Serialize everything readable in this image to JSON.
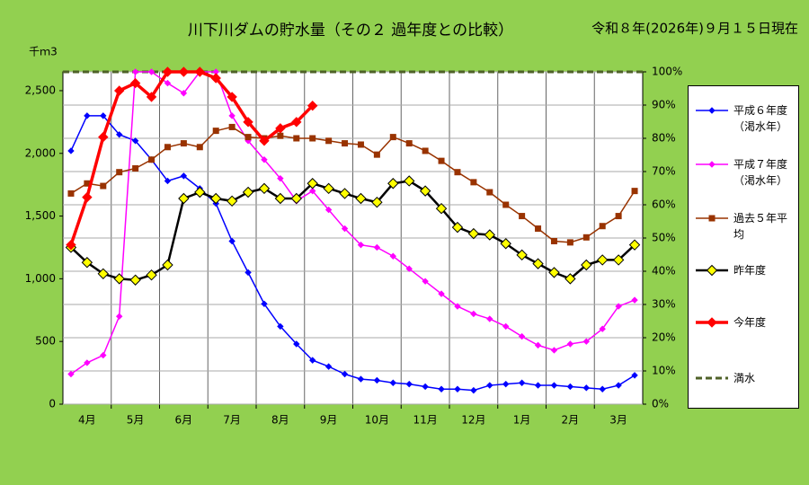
{
  "chart_data": {
    "type": "line",
    "title": "川下川ダムの貯水量（その２ 過年度との比較）",
    "subtitle": "令和８年(2026年)９月１５日現在",
    "ylabel": "千ｍ3",
    "categories": [
      null,
      "4月",
      null,
      null,
      "5月",
      null,
      null,
      "6月",
      null,
      null,
      "7月",
      null,
      null,
      "8月",
      null,
      null,
      "9月",
      null,
      null,
      "10月",
      null,
      null,
      "11月",
      null,
      null,
      "12月",
      null,
      null,
      "1月",
      null,
      null,
      "2月",
      null,
      null,
      "3月",
      null
    ],
    "ylim": [
      0,
      2650
    ],
    "yticks": [
      0,
      500,
      {
        "value": 1000,
        "label": "1,000"
      },
      {
        "value": 1500,
        "label": "1,500"
      },
      {
        "value": 2000,
        "label": "2,000"
      },
      {
        "value": 2500,
        "label": "2,500"
      }
    ],
    "y2lim": [
      0,
      100
    ],
    "y2ticks": [
      {
        "value": 0,
        "label": "0%"
      },
      {
        "value": 10,
        "label": "10%"
      },
      {
        "value": 20,
        "label": "20%"
      },
      {
        "value": 30,
        "label": "30%"
      },
      {
        "value": 40,
        "label": "40%"
      },
      {
        "value": 50,
        "label": "50%"
      },
      {
        "value": 60,
        "label": "60%"
      },
      {
        "value": 70,
        "label": "70%"
      },
      {
        "value": 80,
        "label": "80%"
      },
      {
        "value": 90,
        "label": "90%"
      },
      {
        "value": 100,
        "label": "100%"
      }
    ],
    "grid": true,
    "series": [
      {
        "name": "平成６年度（渇水年）",
        "color": "#0000ff",
        "marker": "diamond",
        "marker_color": "#0000ff",
        "width": 1.5,
        "values": [
          2020,
          2300,
          2300,
          2150,
          2100,
          1950,
          1780,
          1820,
          1720,
          1600,
          1300,
          1050,
          800,
          620,
          480,
          350,
          300,
          240,
          200,
          190,
          170,
          160,
          140,
          120,
          120,
          110,
          150,
          160,
          170,
          150,
          150,
          140,
          130,
          120,
          150,
          230
        ]
      },
      {
        "name": "平成７年度（渇水年）",
        "color": "#ff00ff",
        "marker": "diamond",
        "marker_color": "#ff00ff",
        "width": 1.5,
        "values": [
          240,
          330,
          390,
          700,
          2650,
          2650,
          2560,
          2480,
          2650,
          2650,
          2300,
          2100,
          1950,
          1800,
          1620,
          1700,
          1550,
          1400,
          1270,
          1250,
          1180,
          1080,
          980,
          880,
          780,
          720,
          680,
          620,
          540,
          470,
          430,
          480,
          500,
          600,
          780,
          830
        ]
      },
      {
        "name": "過去５年平均",
        "color": "#993300",
        "marker": "square",
        "marker_color": "#993300",
        "width": 1.5,
        "values": [
          1680,
          1760,
          1740,
          1850,
          1880,
          1950,
          2050,
          2080,
          2050,
          2180,
          2210,
          2130,
          2120,
          2140,
          2120,
          2120,
          2100,
          2080,
          2070,
          1990,
          2130,
          2080,
          2020,
          1940,
          1850,
          1770,
          1690,
          1590,
          1500,
          1400,
          1300,
          1290,
          1330,
          1420,
          1500,
          1700
        ]
      },
      {
        "name": "昨年度",
        "color": "#000000",
        "marker": "diamond",
        "marker_color": "#ffff00",
        "width": 2.5,
        "values": [
          1250,
          1130,
          1040,
          1000,
          990,
          1030,
          1110,
          1640,
          1690,
          1640,
          1620,
          1690,
          1720,
          1640,
          1640,
          1760,
          1720,
          1680,
          1640,
          1610,
          1760,
          1780,
          1700,
          1560,
          1410,
          1360,
          1350,
          1280,
          1190,
          1120,
          1050,
          1000,
          1110,
          1150,
          1150,
          1270
        ]
      },
      {
        "name": "今年度",
        "color": "#ff0000",
        "marker": "diamond",
        "marker_color": "#ff0000",
        "width": 3.5,
        "values": [
          1270,
          1650,
          2130,
          2500,
          2560,
          2450,
          2650,
          2650,
          2650,
          2600,
          2450,
          2250,
          2100,
          2200,
          2250,
          2380,
          null,
          null,
          null,
          null,
          null,
          null,
          null,
          null,
          null,
          null,
          null,
          null,
          null,
          null,
          null,
          null,
          null,
          null,
          null,
          null
        ]
      }
    ],
    "reference_line": {
      "name": "満水",
      "value": 100,
      "axis": "y2",
      "color": "#4f6228",
      "dash": true
    }
  }
}
